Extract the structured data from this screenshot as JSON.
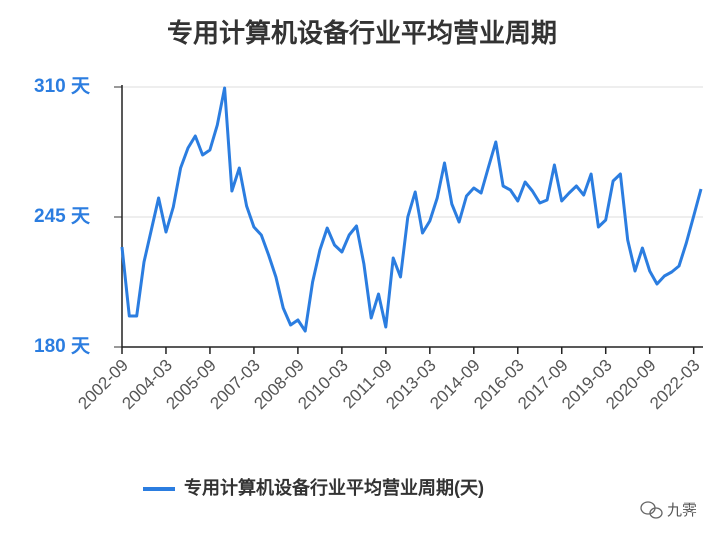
{
  "chart_data": {
    "type": "line",
    "title": "专用计算机设备行业平均营业周期",
    "categories": [
      "2002-09",
      null,
      null,
      null,
      null,
      null,
      "2004-03",
      null,
      null,
      null,
      null,
      null,
      "2005-09",
      null,
      null,
      null,
      null,
      null,
      "2007-03",
      null,
      null,
      null,
      null,
      null,
      "2008-09",
      null,
      null,
      null,
      null,
      null,
      "2010-03",
      null,
      null,
      null,
      null,
      null,
      "2011-09",
      null,
      null,
      null,
      null,
      null,
      "2013-03",
      null,
      null,
      null,
      null,
      null,
      "2014-09",
      null,
      null,
      null,
      null,
      null,
      "2016-03",
      null,
      null,
      null,
      null,
      null,
      "2017-09",
      null,
      null,
      null,
      null,
      null,
      "2019-03",
      null,
      null,
      null,
      null,
      null,
      "2020-09",
      null,
      null,
      null,
      null,
      null,
      "2022-03",
      null
    ],
    "series": [
      {
        "name": "专用计算机设备行业平均营业周期(天)",
        "color": "#2b7de0",
        "values": [
          230,
          195.5,
          195.5,
          222.5,
          238.5,
          254.5,
          237.5,
          250,
          269.5,
          279.5,
          285.5,
          276,
          278.5,
          291,
          309.5,
          258,
          269.5,
          250.5,
          240,
          236,
          226,
          215,
          199.5,
          191,
          193.5,
          188,
          212.5,
          228.5,
          239.5,
          231,
          227.5,
          236,
          240.5,
          221.5,
          194.5,
          206.5,
          190,
          224.5,
          215,
          245,
          257.5,
          237,
          243,
          254.5,
          272,
          251.5,
          242.5,
          255.5,
          259.5,
          257,
          270,
          282.5,
          260.5,
          258.5,
          253,
          262.5,
          258,
          252,
          253.5,
          271,
          253,
          257,
          260.5,
          256,
          266.5,
          240,
          243.5,
          263,
          266.5,
          233.5,
          218,
          229.5,
          218,
          211.5,
          215.5,
          217.5,
          220.5,
          232,
          245.5,
          259
        ]
      }
    ],
    "ylim": [
      180,
      310
    ],
    "yticks": [
      {
        "value": 180,
        "label": "180 天"
      },
      {
        "value": 245,
        "label": "245 天"
      },
      {
        "value": 310,
        "label": "310 天"
      }
    ],
    "grid": true,
    "watermark": "九霁"
  }
}
